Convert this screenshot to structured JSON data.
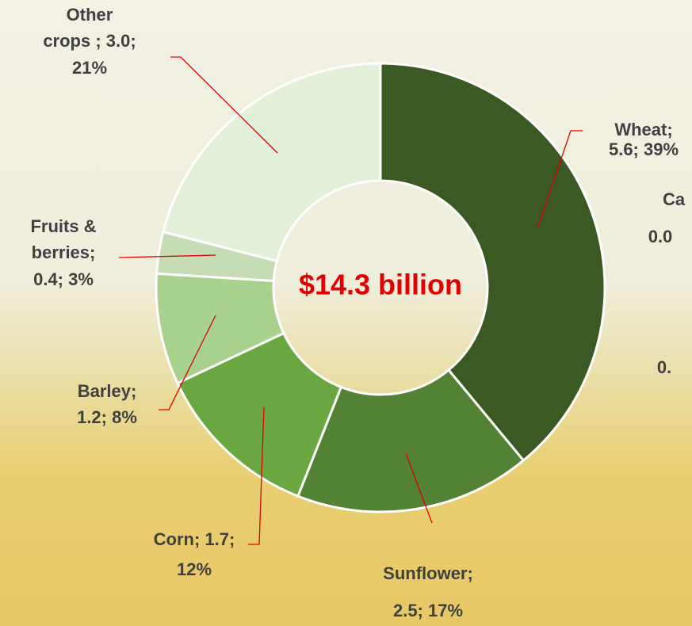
{
  "chart_data": {
    "type": "donut",
    "center_label": "$14.3 billion",
    "values": [
      5.6,
      2.5,
      1.7,
      1.2,
      0.4,
      3.0
    ],
    "percents": [
      39,
      17,
      12,
      8,
      3,
      21
    ],
    "value_labels": [
      [
        "Wheat;",
        "5.6; 39%"
      ],
      [
        "Sunflower;",
        "2.5; 17%"
      ],
      [
        "Corn; 1.7;",
        "12%"
      ],
      [
        "Barley;",
        "1.2; 8%"
      ],
      [
        "Fruits &",
        "berries;",
        "0.4; 3%"
      ],
      [
        "Other",
        "crops ; 3.0;",
        "21%"
      ]
    ],
    "colors": [
      "#3b5a23",
      "#548235",
      "#6aa741",
      "#a9d18e",
      "#c5dcb4",
      "#e2efd9"
    ],
    "cropped_labels": [
      "Ca",
      "0.0",
      "0."
    ]
  }
}
